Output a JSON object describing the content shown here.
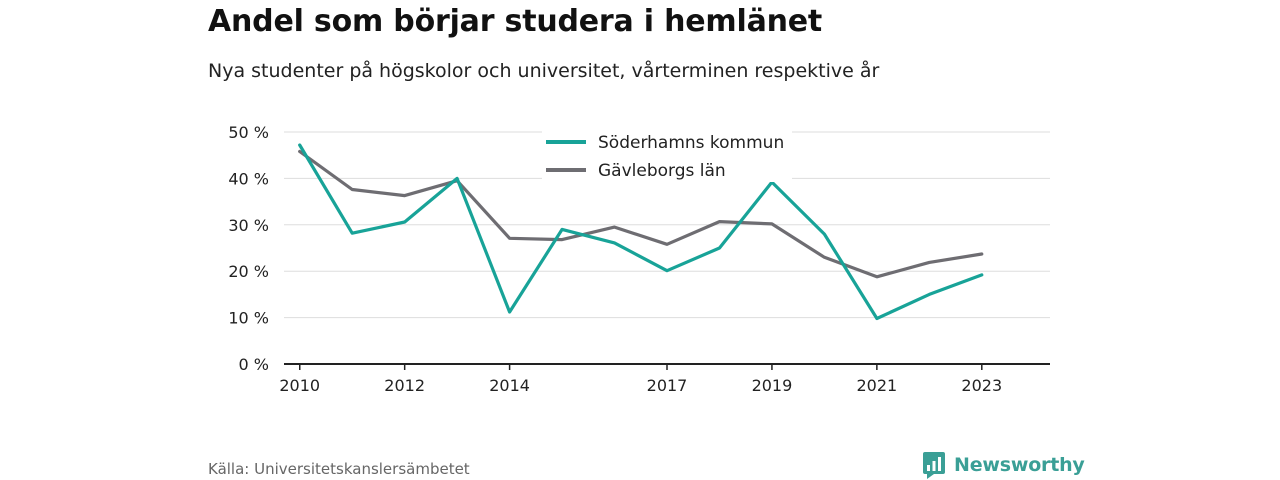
{
  "title": "Andel som börjar studera i hemlänet",
  "subtitle": "Nya studenter på högskolor och universitet, vårterminen respektive år",
  "source": "Källa: Universitetskanslersämbetet",
  "brand": "Newsworthy",
  "colors": {
    "series1": "#18a398",
    "series2": "#6e6d72",
    "brand": "#3a9f96",
    "grid": "#dddddd",
    "axis": "#222222"
  },
  "chart_data": {
    "type": "line",
    "title": "Andel som börjar studera i hemlänet",
    "subtitle": "Nya studenter på högskolor och universitet, vårterminen respektive år",
    "xlabel": "",
    "ylabel": "",
    "x": [
      2010,
      2011,
      2012,
      2013,
      2014,
      2015,
      2016,
      2017,
      2018,
      2019,
      2020,
      2021,
      2022,
      2023
    ],
    "x_ticks": [
      2010,
      2012,
      2014,
      2017,
      2019,
      2021,
      2023
    ],
    "xlim": [
      2009.7,
      2024.3
    ],
    "ylim": [
      0,
      50
    ],
    "y_ticks": [
      0,
      10,
      20,
      30,
      40,
      50
    ],
    "y_tick_labels": [
      "0 %",
      "10 %",
      "20 %",
      "30 %",
      "40 %",
      "50 %"
    ],
    "grid": true,
    "legend_position": "top-center",
    "series": [
      {
        "name": "Söderhamns kommun",
        "color": "#18a398",
        "values": [
          47.2,
          28.2,
          30.6,
          40.0,
          11.2,
          29.0,
          26.1,
          20.1,
          25.0,
          39.2,
          28.0,
          9.8,
          15.0,
          19.2
        ]
      },
      {
        "name": "Gävleborgs län",
        "color": "#6e6d72",
        "values": [
          45.8,
          37.6,
          36.3,
          39.5,
          27.1,
          26.8,
          29.5,
          25.8,
          30.7,
          30.2,
          23.0,
          18.8,
          21.9,
          23.7
        ]
      }
    ]
  }
}
